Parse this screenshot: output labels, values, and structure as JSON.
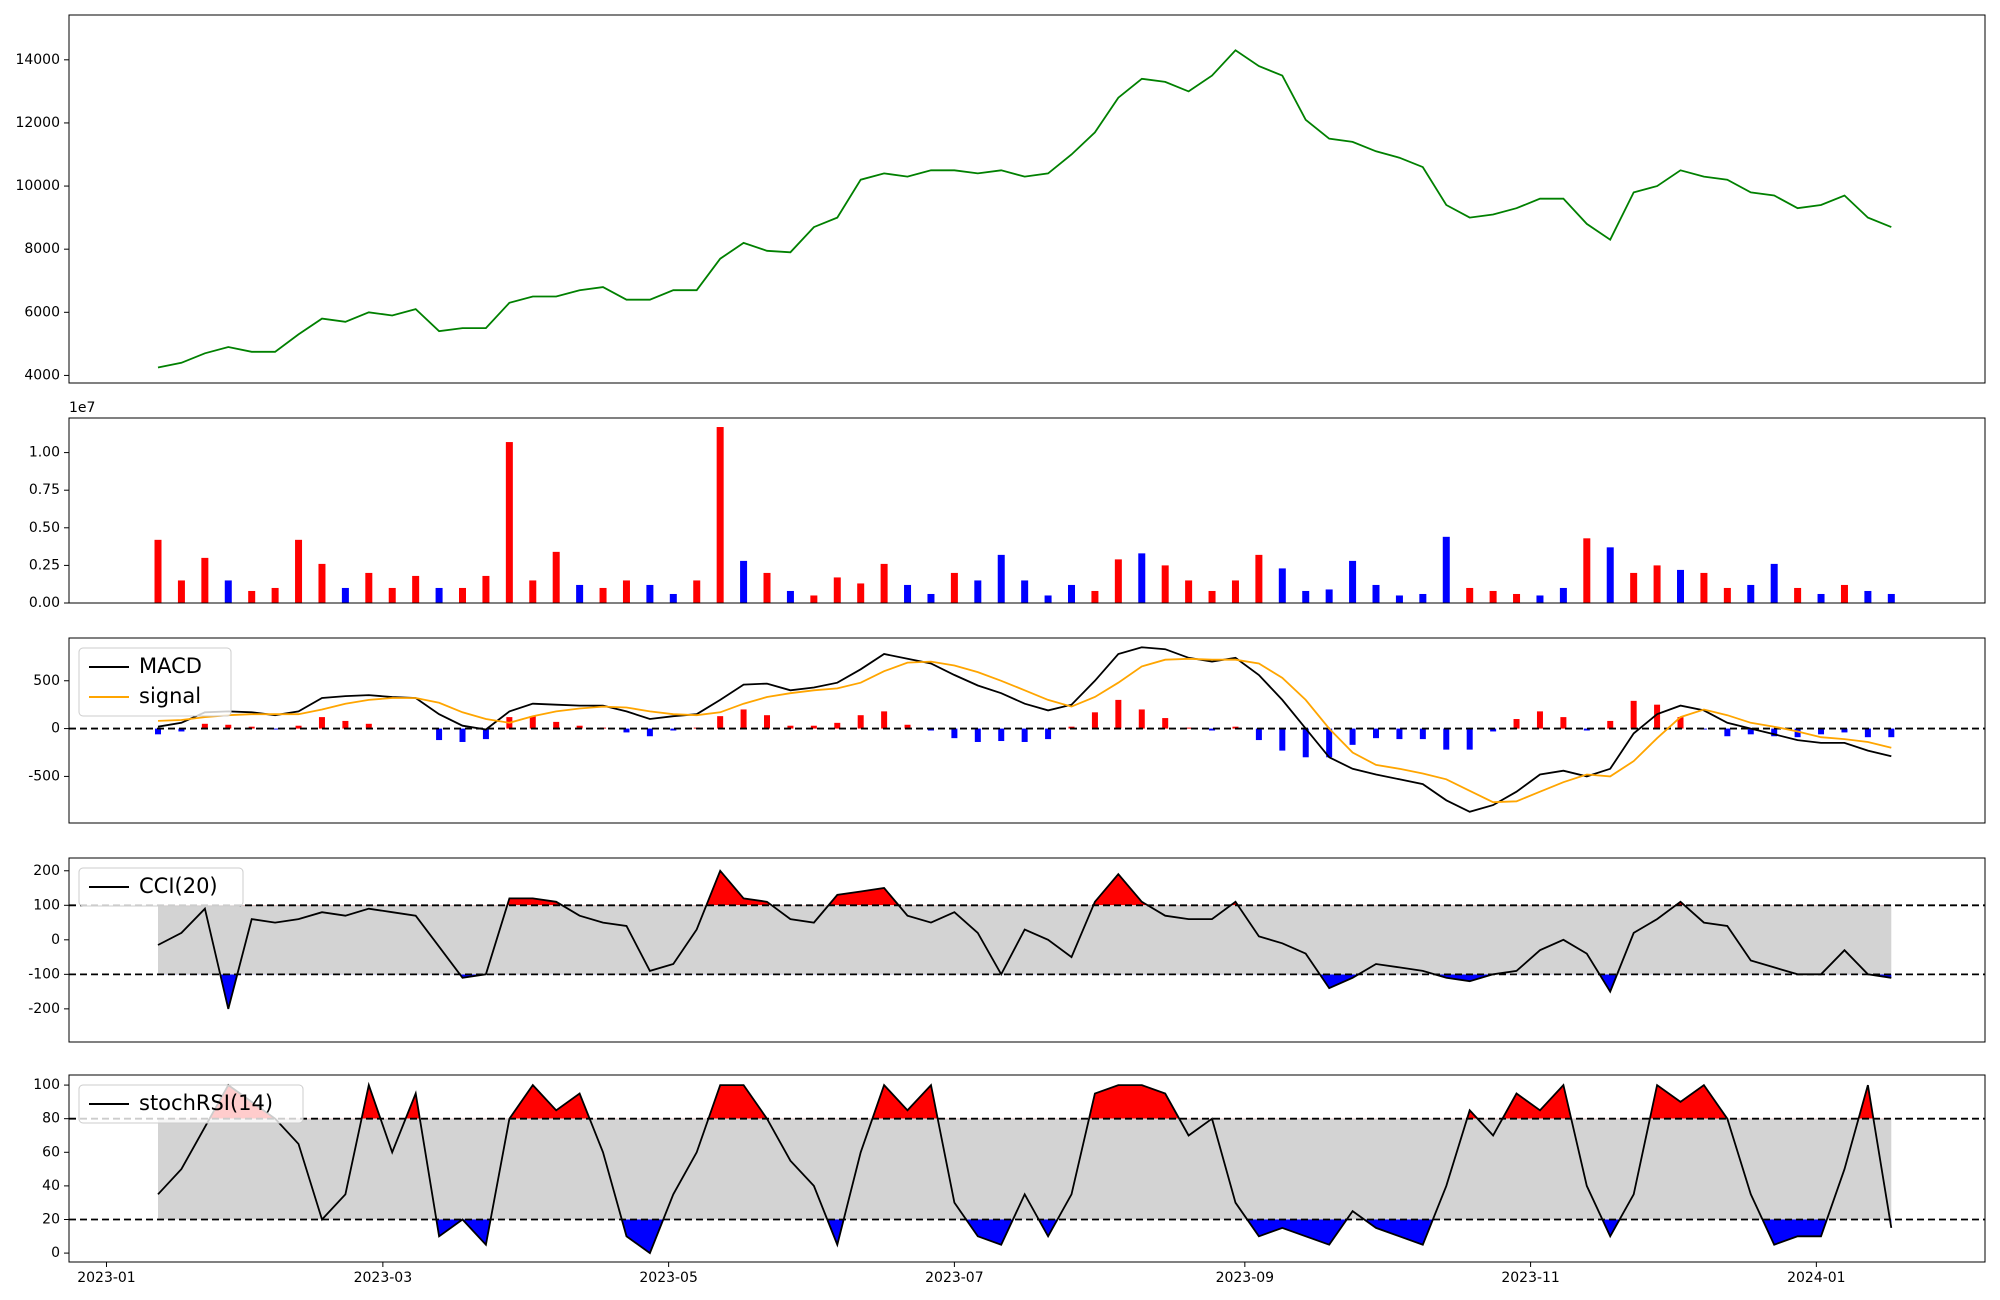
{
  "chart_data": [
    {
      "type": "line",
      "color": "green",
      "x": [
        11,
        16,
        21,
        26,
        31,
        36,
        41,
        46,
        51,
        56,
        61,
        66,
        71,
        76,
        81,
        86,
        91,
        96,
        101,
        106,
        111,
        116,
        121,
        126,
        131,
        136,
        141,
        146,
        151,
        156,
        161,
        166,
        171,
        176,
        181,
        186,
        191,
        196,
        201,
        206,
        211,
        216,
        221,
        226,
        231,
        236,
        241,
        246,
        251,
        256,
        261,
        266,
        271,
        276,
        281,
        286,
        291,
        296,
        301,
        306,
        311,
        316,
        321,
        326,
        331,
        336,
        341,
        346,
        351,
        356,
        361,
        366,
        371,
        376,
        381
      ],
      "values": [
        4250,
        4400,
        4700,
        4900,
        4750,
        4750,
        5300,
        5800,
        5700,
        6000,
        5900,
        6100,
        5400,
        5500,
        5500,
        6300,
        6500,
        6500,
        6700,
        6800,
        6400,
        6400,
        6700,
        6700,
        7700,
        8200,
        7950,
        7900,
        8700,
        9000,
        10200,
        10400,
        10300,
        10500,
        10500,
        10400,
        10500,
        10300,
        10400,
        11000,
        11700,
        12800,
        13400,
        13300,
        13000,
        13500,
        14300,
        13800,
        13500,
        12100,
        11500,
        11400,
        11100,
        10900,
        10600,
        9400,
        9000,
        9100,
        9300,
        9600,
        9600,
        8800,
        8300,
        9800,
        10000,
        10500,
        10300,
        10200,
        9800,
        9700,
        9300,
        9400,
        9700,
        9000,
        8700
      ],
      "xlim": [
        -8,
        401
      ],
      "ylim": [
        3760,
        15420
      ],
      "yticks": [
        4000,
        6000,
        8000,
        10000,
        12000,
        14000
      ]
    },
    {
      "type": "bar",
      "offset_label": "1e7",
      "x": [
        11,
        16,
        21,
        26,
        31,
        36,
        41,
        46,
        51,
        56,
        61,
        66,
        71,
        76,
        81,
        86,
        91,
        96,
        101,
        106,
        111,
        116,
        121,
        126,
        131,
        136,
        141,
        146,
        151,
        156,
        161,
        166,
        171,
        176,
        181,
        186,
        191,
        196,
        201,
        206,
        211,
        216,
        221,
        226,
        231,
        236,
        241,
        246,
        251,
        256,
        261,
        266,
        271,
        276,
        281,
        286,
        291,
        296,
        301,
        306,
        311,
        316,
        321,
        326,
        331,
        336,
        341,
        346,
        351,
        356,
        361,
        366,
        371,
        376,
        381
      ],
      "values": [
        0.42,
        0.15,
        0.3,
        0.15,
        0.08,
        0.1,
        0.42,
        0.26,
        0.1,
        0.2,
        0.1,
        0.18,
        0.1,
        0.1,
        0.18,
        1.07,
        0.15,
        0.34,
        0.12,
        0.1,
        0.15,
        0.12,
        0.06,
        0.15,
        1.17,
        0.28,
        0.2,
        0.08,
        0.05,
        0.17,
        0.13,
        0.26,
        0.12,
        0.06,
        0.2,
        0.15,
        0.32,
        0.15,
        0.05,
        0.12,
        0.08,
        0.29,
        0.33,
        0.25,
        0.15,
        0.08,
        0.15,
        0.32,
        0.23,
        0.08,
        0.09,
        0.28,
        0.12,
        0.05,
        0.06,
        0.44,
        0.1,
        0.08,
        0.06,
        0.05,
        0.1,
        0.43,
        0.37,
        0.2,
        0.25,
        0.22,
        0.2,
        0.1,
        0.12,
        0.26,
        0.1,
        0.06,
        0.12,
        0.08,
        0.06
      ],
      "colors": [
        "red",
        "red",
        "red",
        "blue",
        "red",
        "red",
        "red",
        "red",
        "blue",
        "red",
        "red",
        "red",
        "blue",
        "red",
        "red",
        "red",
        "red",
        "red",
        "blue",
        "red",
        "red",
        "blue",
        "blue",
        "red",
        "red",
        "blue",
        "red",
        "blue",
        "red",
        "red",
        "red",
        "red",
        "blue",
        "blue",
        "red",
        "blue",
        "blue",
        "blue",
        "blue",
        "blue",
        "red",
        "red",
        "blue",
        "red",
        "red",
        "red",
        "red",
        "red",
        "blue",
        "blue",
        "blue",
        "blue",
        "blue",
        "blue",
        "blue",
        "blue",
        "red",
        "red",
        "red",
        "blue",
        "blue",
        "red",
        "blue",
        "red",
        "red",
        "blue",
        "red",
        "red",
        "blue",
        "blue",
        "red",
        "blue",
        "red",
        "blue",
        "blue"
      ],
      "xlim": [
        -8,
        401
      ],
      "ylim": [
        0,
        1.23
      ],
      "yticks": [
        {
          "value": 0,
          "label": "0.00"
        },
        {
          "value": 0.25,
          "label": "0.25"
        },
        {
          "value": 0.5,
          "label": "0.50"
        },
        {
          "value": 0.75,
          "label": "0.75"
        },
        {
          "value": 1,
          "label": "1.00"
        }
      ]
    },
    {
      "type": "macd",
      "legend": "upper left",
      "hlines": [
        0
      ],
      "bar_colors": [
        "red",
        "blue"
      ],
      "x": [
        11,
        16,
        21,
        26,
        31,
        36,
        41,
        46,
        51,
        56,
        61,
        66,
        71,
        76,
        81,
        86,
        91,
        96,
        101,
        106,
        111,
        116,
        121,
        126,
        131,
        136,
        141,
        146,
        151,
        156,
        161,
        166,
        171,
        176,
        181,
        186,
        191,
        196,
        201,
        206,
        211,
        216,
        221,
        226,
        231,
        236,
        241,
        246,
        251,
        256,
        261,
        266,
        271,
        276,
        281,
        286,
        291,
        296,
        301,
        306,
        311,
        316,
        321,
        326,
        331,
        336,
        341,
        346,
        351,
        356,
        361,
        366,
        371,
        376,
        381
      ],
      "series": [
        {
          "name": "MACD",
          "color": "black",
          "values": [
            20,
            60,
            170,
            180,
            170,
            140,
            180,
            320,
            340,
            350,
            330,
            320,
            150,
            30,
            -10,
            180,
            260,
            250,
            240,
            240,
            180,
            100,
            130,
            150,
            300,
            460,
            470,
            400,
            430,
            480,
            620,
            780,
            730,
            680,
            560,
            450,
            370,
            260,
            190,
            250,
            500,
            780,
            850,
            830,
            740,
            700,
            740,
            560,
            300,
            0,
            -300,
            -420,
            -480,
            -530,
            -580,
            -750,
            -870,
            -800,
            -660,
            -480,
            -440,
            -500,
            -420,
            -50,
            150,
            240,
            190,
            60,
            0,
            -60,
            -120,
            -150,
            -150,
            -230,
            -290
          ]
        },
        {
          "name": "signal",
          "color": "orange",
          "values": [
            80,
            90,
            120,
            140,
            150,
            150,
            150,
            200,
            260,
            300,
            320,
            320,
            270,
            170,
            100,
            60,
            130,
            180,
            210,
            230,
            220,
            180,
            150,
            140,
            170,
            260,
            330,
            370,
            400,
            420,
            480,
            600,
            690,
            700,
            660,
            590,
            500,
            400,
            300,
            230,
            330,
            480,
            650,
            720,
            730,
            720,
            720,
            680,
            530,
            300,
            0,
            -250,
            -380,
            -420,
            -470,
            -530,
            -650,
            -770,
            -760,
            -660,
            -560,
            -480,
            -500,
            -340,
            -100,
            120,
            200,
            140,
            60,
            20,
            -30,
            -90,
            -110,
            -140,
            -200
          ]
        }
      ],
      "histogram": [
        -60,
        -30,
        50,
        40,
        20,
        -10,
        30,
        120,
        80,
        50,
        10,
        0,
        -120,
        -140,
        -110,
        120,
        130,
        70,
        30,
        10,
        -40,
        -80,
        -20,
        10,
        130,
        200,
        140,
        30,
        30,
        60,
        140,
        180,
        40,
        -20,
        -100,
        -140,
        -130,
        -140,
        -110,
        20,
        170,
        300,
        200,
        110,
        10,
        -20,
        20,
        -120,
        -230,
        -300,
        -300,
        -170,
        -100,
        -110,
        -110,
        -220,
        -220,
        -30,
        100,
        180,
        120,
        -20,
        80,
        290,
        250,
        120,
        -10,
        -80,
        -60,
        -80,
        -90,
        -60,
        -40,
        -90,
        -90
      ],
      "xlim": [
        -8,
        401
      ],
      "ylim": [
        -987,
        947
      ],
      "yticks": [
        -500,
        0,
        500
      ]
    },
    {
      "type": "band",
      "legend": "upper left",
      "hlines": [
        -100,
        100
      ],
      "band_color": "lightgray",
      "fill_colors": [
        "red",
        "blue"
      ],
      "x": [
        11,
        16,
        21,
        26,
        31,
        36,
        41,
        46,
        51,
        56,
        61,
        66,
        71,
        76,
        81,
        86,
        91,
        96,
        101,
        106,
        111,
        116,
        121,
        126,
        131,
        136,
        141,
        146,
        151,
        156,
        161,
        166,
        171,
        176,
        181,
        186,
        191,
        196,
        201,
        206,
        211,
        216,
        221,
        226,
        231,
        236,
        241,
        246,
        251,
        256,
        261,
        266,
        271,
        276,
        281,
        286,
        291,
        296,
        301,
        306,
        311,
        316,
        321,
        326,
        331,
        336,
        341,
        346,
        351,
        356,
        361,
        366,
        371,
        376,
        381
      ],
      "series": [
        {
          "name": "CCI(20)",
          "color": "black",
          "values": [
            -15,
            20,
            90,
            -200,
            60,
            50,
            60,
            80,
            70,
            90,
            80,
            70,
            -20,
            -110,
            -100,
            120,
            120,
            110,
            70,
            50,
            40,
            -90,
            -70,
            30,
            200,
            120,
            110,
            60,
            50,
            130,
            140,
            150,
            70,
            50,
            80,
            20,
            -100,
            30,
            0,
            -50,
            110,
            190,
            110,
            70,
            60,
            60,
            110,
            10,
            -10,
            -40,
            -140,
            -110,
            -70,
            -80,
            -90,
            -110,
            -120,
            -100,
            -90,
            -30,
            0,
            -40,
            -150,
            20,
            60,
            110,
            50,
            40,
            -60,
            -80,
            -100,
            -100,
            -30,
            -100,
            -110
          ]
        }
      ],
      "xlim": [
        -8,
        401
      ],
      "ylim": [
        -296,
        237
      ],
      "yticks": [
        -200,
        -100,
        0,
        100,
        200
      ]
    },
    {
      "type": "band",
      "legend": "upper left",
      "hlines": [
        20,
        80
      ],
      "band_color": "lightgray",
      "fill_colors": [
        "red",
        "blue"
      ],
      "x": [
        11,
        16,
        21,
        26,
        31,
        36,
        41,
        46,
        51,
        56,
        61,
        66,
        71,
        76,
        81,
        86,
        91,
        96,
        101,
        106,
        111,
        116,
        121,
        126,
        131,
        136,
        141,
        146,
        151,
        156,
        161,
        166,
        171,
        176,
        181,
        186,
        191,
        196,
        201,
        206,
        211,
        216,
        221,
        226,
        231,
        236,
        241,
        246,
        251,
        256,
        261,
        266,
        271,
        276,
        281,
        286,
        291,
        296,
        301,
        306,
        311,
        316,
        321,
        326,
        331,
        336,
        341,
        346,
        351,
        356,
        361,
        366,
        371,
        376,
        381
      ],
      "series": [
        {
          "name": "stochRSI(14)",
          "color": "black",
          "values": [
            35,
            50,
            75,
            100,
            90,
            80,
            65,
            20,
            35,
            100,
            60,
            95,
            10,
            20,
            5,
            80,
            100,
            85,
            95,
            60,
            10,
            0,
            35,
            60,
            100,
            100,
            80,
            55,
            40,
            5,
            60,
            100,
            85,
            100,
            30,
            10,
            5,
            35,
            10,
            35,
            95,
            100,
            100,
            95,
            70,
            80,
            30,
            10,
            15,
            10,
            5,
            25,
            15,
            10,
            5,
            40,
            85,
            70,
            95,
            85,
            100,
            40,
            10,
            35,
            100,
            90,
            100,
            80,
            35,
            5,
            10,
            10,
            50,
            100,
            15
          ]
        }
      ],
      "xlim": [
        -8,
        401
      ],
      "ylim": [
        -5.3,
        106
      ],
      "yticks": [
        0,
        20,
        40,
        60,
        80,
        100
      ],
      "xticks": [
        {
          "value": 0,
          "label": "2023-01"
        },
        {
          "value": 59,
          "label": "2023-03"
        },
        {
          "value": 120,
          "label": "2023-05"
        },
        {
          "value": 181,
          "label": "2023-07"
        },
        {
          "value": 243,
          "label": "2023-09"
        },
        {
          "value": 304,
          "label": "2023-11"
        },
        {
          "value": 365,
          "label": "2024-01"
        }
      ]
    }
  ]
}
